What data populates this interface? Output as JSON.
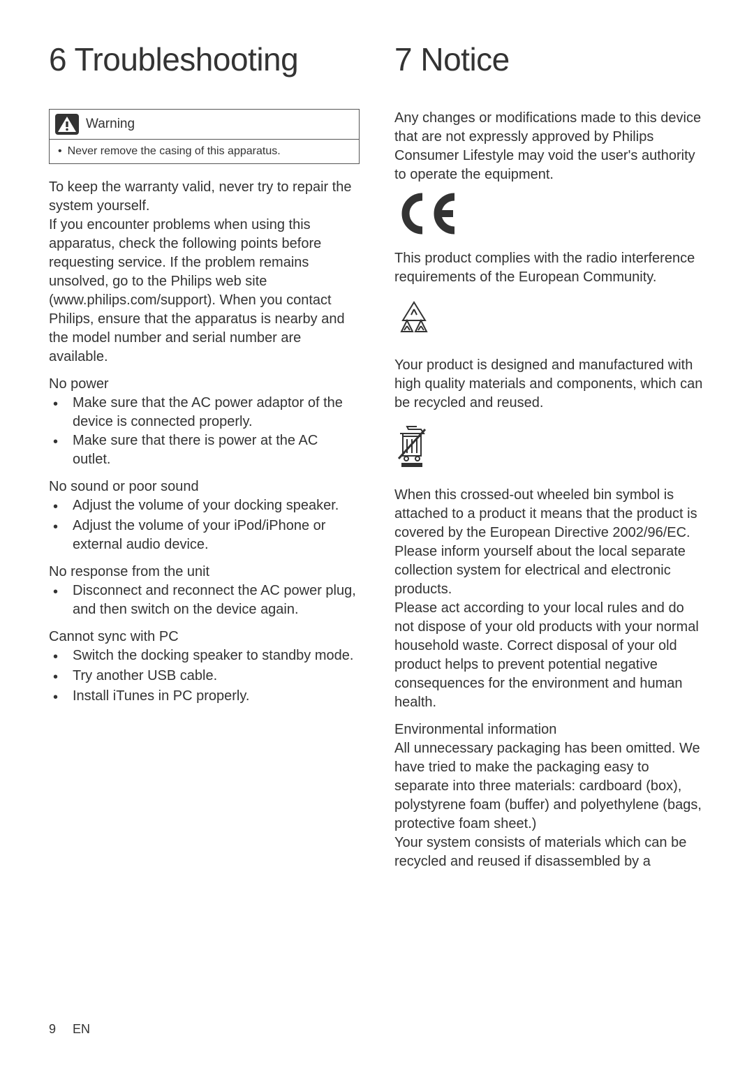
{
  "left": {
    "title": "6  Troubleshooting",
    "warning": {
      "label": "Warning",
      "item": "Never remove the casing of this apparatus."
    },
    "intro1": "To keep the warranty valid, never try to repair the system yourself.",
    "intro2": "If you encounter problems when using this apparatus, check the following points before requesting service. If the problem remains unsolved, go to the Philips web site (www.philips.com/support). When you contact Philips, ensure that the apparatus is nearby and the model number and serial number are available.",
    "sections": [
      {
        "heading": "No power",
        "items": [
          "Make sure that the AC power adaptor of the device is connected properly.",
          "Make sure that there is power at the AC outlet."
        ]
      },
      {
        "heading": "No sound or poor sound",
        "items": [
          "Adjust the volume of your docking speaker.",
          "Adjust the volume of your iPod/iPhone or external audio device."
        ]
      },
      {
        "heading": "No response from the unit",
        "items": [
          "Disconnect and reconnect the AC power plug, and then switch on the device again."
        ]
      },
      {
        "heading": "Cannot sync with PC",
        "items": [
          "Switch the docking speaker to standby mode.",
          "Try another USB cable.",
          "Install iTunes in PC properly."
        ]
      }
    ]
  },
  "right": {
    "title": "7   Notice",
    "p1": "Any changes or modifications made to this device that are not expressly approved by Philips Consumer Lifestyle may void the user's authority to operate the equipment.",
    "p2": "This product complies with the radio interference requirements of the European Community.",
    "p3": "Your product is designed and manufactured with high quality materials and components, which can be recycled and reused.",
    "p4": "When this crossed-out wheeled bin symbol is attached to a product it means that the product is covered by the European Directive 2002/96/EC.",
    "p5": "Please inform yourself about the local separate collection system for electrical and electronic products.",
    "p6": "Please act according to your local rules and do not dispose of your old products with your normal household waste. Correct disposal of your old product helps to prevent potential negative consequences for the environment and human health.",
    "env_heading": "Environmental information",
    "p7": "All unnecessary packaging has been omitted. We have tried to make the packaging easy to separate into three materials: cardboard (box), polystyrene foam (buffer) and polyethylene (bags, protective foam sheet.)",
    "p8": "Your system consists of materials which can be recycled and reused if disassembled by a"
  },
  "footer": {
    "page": "9",
    "lang": "EN"
  },
  "colors": {
    "text": "#333333",
    "border": "#555555",
    "bg": "#ffffff"
  }
}
